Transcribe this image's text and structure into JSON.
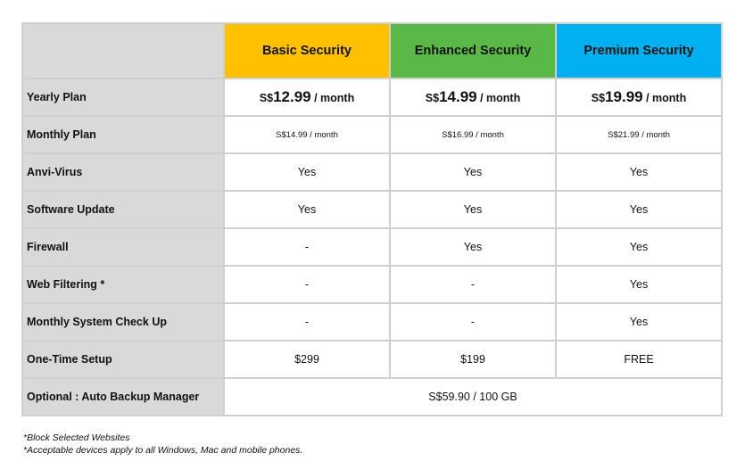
{
  "colors": {
    "label_bg": "#d9d9d9",
    "border": "#cfcfcf",
    "basic": "#ffc000",
    "enhanced": "#5ab946",
    "premium": "#00b0f0"
  },
  "plans": [
    {
      "name": "Basic Security",
      "color": "#ffc000"
    },
    {
      "name": "Enhanced Security",
      "color": "#5ab946"
    },
    {
      "name": "Premium Security",
      "color": "#00b0f0"
    }
  ],
  "yearly": {
    "label": "Yearly Plan",
    "prices": [
      {
        "currency": "S$",
        "amount": "12.99",
        "period": " / month"
      },
      {
        "currency": "S$",
        "amount": "14.99",
        "period": " / month"
      },
      {
        "currency": "S$",
        "amount": "19.99",
        "period": " / month"
      }
    ]
  },
  "monthly": {
    "label": "Monthly Plan",
    "prices": [
      "S$14.99 / month",
      "S$16.99 / month",
      "S$21.99 / month"
    ]
  },
  "features": [
    {
      "label": "Anvi-Virus",
      "values": [
        "Yes",
        "Yes",
        "Yes"
      ]
    },
    {
      "label": "Software Update",
      "values": [
        "Yes",
        "Yes",
        "Yes"
      ]
    },
    {
      "label": "Firewall",
      "values": [
        "-",
        "Yes",
        "Yes"
      ]
    },
    {
      "label": "Web Filtering *",
      "values": [
        "-",
        "-",
        "Yes"
      ]
    },
    {
      "label": "Monthly System Check Up",
      "values": [
        "-",
        "-",
        "Yes"
      ]
    },
    {
      "label": "One-Time Setup",
      "values": [
        "$299",
        "$199",
        "FREE"
      ]
    }
  ],
  "optional": {
    "label": "Optional : Auto Backup Manager",
    "value": "S$59.90 / 100 GB"
  },
  "footnotes": [
    "*Block Selected Websites",
    "*Acceptable devices apply to all Windows, Mac and mobile phones."
  ]
}
